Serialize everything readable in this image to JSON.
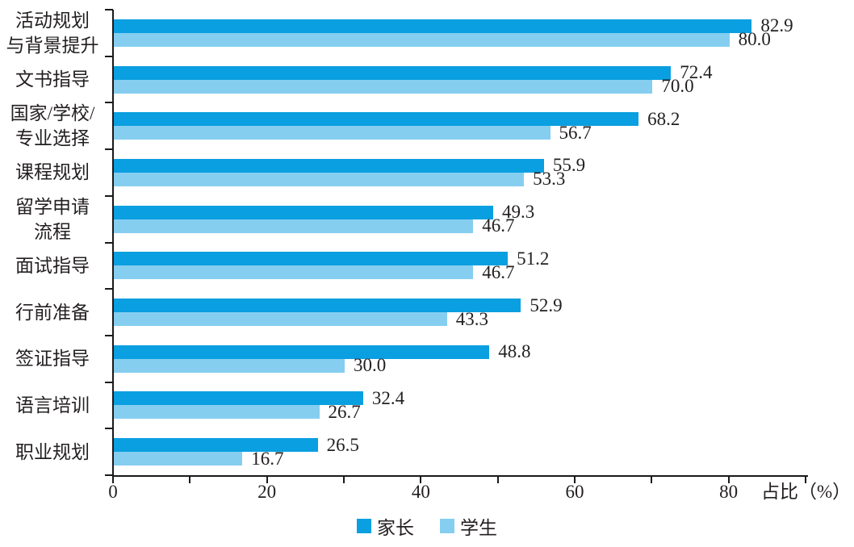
{
  "chart_data": {
    "type": "bar",
    "orientation": "horizontal",
    "title": "",
    "categories": [
      "活动规划\n与背景提升",
      "文书指导",
      "国家/学校/\n专业选择",
      "课程规划",
      "留学申请\n流程",
      "面试指导",
      "行前准备",
      "签证指导",
      "语言培训",
      "职业规划"
    ],
    "series": [
      {
        "name": "家长",
        "color": "#0a9fe0",
        "values": [
          82.9,
          72.4,
          68.2,
          55.9,
          49.3,
          51.2,
          52.9,
          48.8,
          32.4,
          26.5
        ]
      },
      {
        "name": "学生",
        "color": "#85cef0",
        "values": [
          80.0,
          70.0,
          56.7,
          53.3,
          46.7,
          46.7,
          43.3,
          30.0,
          26.7,
          16.7
        ]
      }
    ],
    "xlabel": "占比（%）",
    "xlim": [
      0,
      90
    ],
    "xtick_values": [
      0,
      20,
      40,
      60,
      80
    ],
    "xtick_labels": [
      "0",
      "20",
      "40",
      "60",
      "80"
    ],
    "minor_tick_step": 10,
    "value_decimals": 1,
    "grid": false,
    "legend_position": "bottom-center"
  },
  "legend": {
    "items": [
      {
        "label": "家长",
        "color": "#0a9fe0"
      },
      {
        "label": "学生",
        "color": "#85cef0"
      }
    ]
  },
  "colors": {
    "axis": "#1a1a1a",
    "text": "#231f20",
    "background": "#ffffff"
  }
}
